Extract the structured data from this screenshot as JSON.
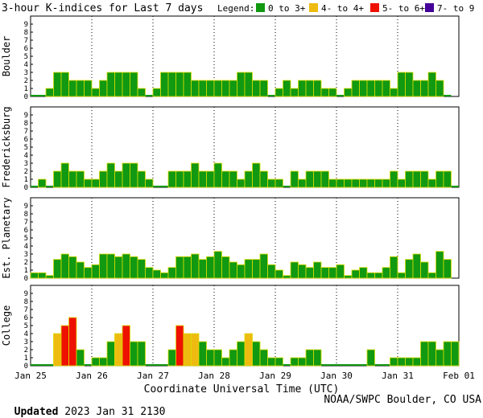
{
  "title": "3-hour K-indices for Last 7 days",
  "legend": {
    "label": "Legend:",
    "items": [
      {
        "label": "0 to 3+",
        "color": "#119911"
      },
      {
        "label": "4- to 4+",
        "color": "#eebb11"
      },
      {
        "label": "5- to 6+",
        "color": "#ee1100"
      },
      {
        "label": "7- to 9",
        "color": "#440099"
      }
    ]
  },
  "chart_data": {
    "type": "bar",
    "xlabel": "Coordinate Universal Time (UTC)",
    "x_ticks": [
      "Jan 25",
      "Jan 26",
      "Jan 27",
      "Jan 28",
      "Jan 29",
      "Jan 30",
      "Jan 31",
      "Feb 01"
    ],
    "ylim": [
      0,
      9
    ],
    "y_ticks": [
      "0",
      "1",
      "2",
      "3",
      "4",
      "5",
      "6",
      "7",
      "8",
      "9"
    ],
    "bins_per_day": 8,
    "grid": "dotted vertical at day boundaries",
    "panels": [
      {
        "name": "Boulder",
        "values": [
          0,
          0,
          1,
          3,
          3,
          2,
          2,
          2,
          1,
          2,
          3,
          3,
          3,
          3,
          1,
          0,
          1,
          3,
          3,
          3,
          3,
          2,
          2,
          2,
          2,
          2,
          2,
          3,
          3,
          2,
          2,
          0,
          1,
          2,
          1,
          2,
          2,
          2,
          1,
          1,
          0,
          1,
          2,
          2,
          2,
          2,
          2,
          1,
          3,
          3,
          2,
          2,
          3,
          2,
          0
        ]
      },
      {
        "name": "Fredericksburg",
        "values": [
          0,
          1,
          0,
          2,
          3,
          2,
          2,
          1,
          1,
          2,
          3,
          2,
          3,
          3,
          2,
          1,
          0,
          0,
          2,
          2,
          2,
          3,
          2,
          2,
          3,
          2,
          2,
          1,
          2,
          3,
          2,
          1,
          1,
          0,
          2,
          1,
          2,
          2,
          2,
          1,
          1,
          1,
          1,
          1,
          1,
          1,
          1,
          2,
          1,
          2,
          2,
          2,
          1,
          2,
          2,
          0
        ]
      },
      {
        "name": "Est. Planetary",
        "values": [
          0.67,
          0.67,
          0.33,
          2.33,
          3,
          2.67,
          2,
          1.33,
          1.67,
          3,
          3,
          2.67,
          3,
          2.67,
          2.33,
          1.33,
          1,
          0.67,
          1.33,
          2.67,
          2.67,
          3,
          2.33,
          2.67,
          3.33,
          2.67,
          2,
          1.67,
          2.33,
          2.33,
          3,
          1.67,
          1,
          0.33,
          2,
          1.67,
          1.33,
          2,
          1.33,
          1.33,
          1.67,
          0.33,
          1,
          1.33,
          0.67,
          0.67,
          1.33,
          2.67,
          0.67,
          2.33,
          3,
          2,
          0.67,
          3.33,
          2.33
        ]
      },
      {
        "name": "College",
        "values": [
          0,
          0,
          0,
          4,
          5,
          6,
          2,
          0,
          1,
          1,
          3,
          4,
          5,
          3,
          3,
          0,
          0,
          0,
          2,
          5,
          4,
          4,
          3,
          2,
          2,
          1,
          2,
          3,
          4,
          3,
          2,
          1,
          1,
          0,
          1,
          1,
          2,
          2,
          0,
          0,
          0,
          0,
          0,
          0,
          2,
          0,
          0,
          1,
          1,
          1,
          1,
          3,
          3,
          2,
          3,
          3
        ]
      }
    ]
  },
  "footer": {
    "updated_label": "Updated",
    "updated_value": "2023 Jan 31 2130",
    "source": "NOAA/SWPC Boulder, CO USA"
  }
}
